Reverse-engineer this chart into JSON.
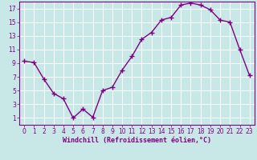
{
  "x": [
    0,
    1,
    2,
    3,
    4,
    5,
    6,
    7,
    8,
    9,
    10,
    11,
    12,
    13,
    14,
    15,
    16,
    17,
    18,
    19,
    20,
    21,
    22,
    23
  ],
  "y": [
    9.3,
    9.1,
    6.7,
    4.6,
    3.8,
    1.0,
    2.3,
    1.1,
    5.0,
    5.5,
    8.0,
    10.0,
    12.5,
    13.5,
    15.3,
    15.7,
    17.5,
    17.8,
    17.5,
    16.8,
    15.3,
    15.0,
    11.0,
    7.2
  ],
  "line_color": "#800080",
  "marker": "+",
  "markersize": 4,
  "linewidth": 1.0,
  "background_color": "#c8e8e8",
  "grid_color": "#ffffff",
  "xlabel": "Windchill (Refroidissement éolien,°C)",
  "xlabel_color": "#800080",
  "tick_color": "#800080",
  "spine_color": "#800080",
  "ylim": [
    0,
    18
  ],
  "xlim": [
    -0.5,
    23.5
  ],
  "yticks": [
    1,
    3,
    5,
    7,
    9,
    11,
    13,
    15,
    17
  ],
  "xticks": [
    0,
    1,
    2,
    3,
    4,
    5,
    6,
    7,
    8,
    9,
    10,
    11,
    12,
    13,
    14,
    15,
    16,
    17,
    18,
    19,
    20,
    21,
    22,
    23
  ],
  "tick_fontsize": 5.5,
  "xlabel_fontsize": 6.0,
  "xlabel_fontweight": "bold"
}
